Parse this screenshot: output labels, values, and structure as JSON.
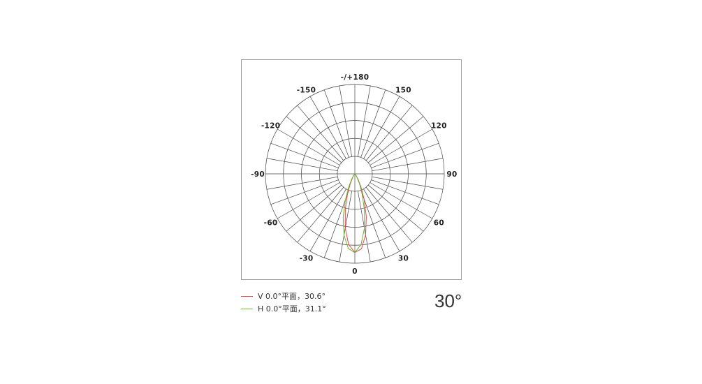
{
  "chart_data": {
    "type": "polar",
    "angle_tick_labels": [
      "0",
      "30",
      "60",
      "90",
      "120",
      "150",
      "-/+180",
      "-150",
      "-120",
      "-90",
      "-60",
      "-30"
    ],
    "angle_ticks": [
      0,
      30,
      60,
      90,
      120,
      150,
      180,
      -150,
      -120,
      -90,
      -60,
      -30
    ],
    "orientation": "0 at bottom, 90 right, -90 left, 180 top",
    "grid": true,
    "radial_rings": 5,
    "spoke_step_deg": 10,
    "angles": [
      -45,
      -40,
      -35,
      -30,
      -25,
      -20,
      -15,
      -10,
      -5,
      0,
      5,
      10,
      15,
      20,
      25,
      30,
      35,
      40,
      45
    ],
    "series": [
      {
        "name": "V 0.0°平面，30.6°",
        "color": "#e8464a",
        "values": [
          0.002,
          0.007,
          0.021,
          0.058,
          0.135,
          0.271,
          0.469,
          0.699,
          0.899,
          0.997,
          0.954,
          0.787,
          0.56,
          0.343,
          0.182,
          0.083,
          0.033,
          0.011,
          0.003
        ]
      },
      {
        "name": "H 0.0°平面，31.1°",
        "color": "#6ab42a",
        "values": [
          0.003,
          0.011,
          0.034,
          0.086,
          0.187,
          0.35,
          0.57,
          0.79,
          0.95,
          0.998,
          0.9,
          0.7,
          0.47,
          0.27,
          0.14,
          0.06,
          0.022,
          0.007,
          0.002
        ]
      }
    ],
    "legend_position": "bottom-left"
  },
  "legend": [
    {
      "label": "V 0.0°平面，30.6°",
      "color": "#e8464a"
    },
    {
      "label": "H 0.0°平面，31.1°",
      "color": "#6ab42a"
    }
  ],
  "beam_angle": "30°"
}
